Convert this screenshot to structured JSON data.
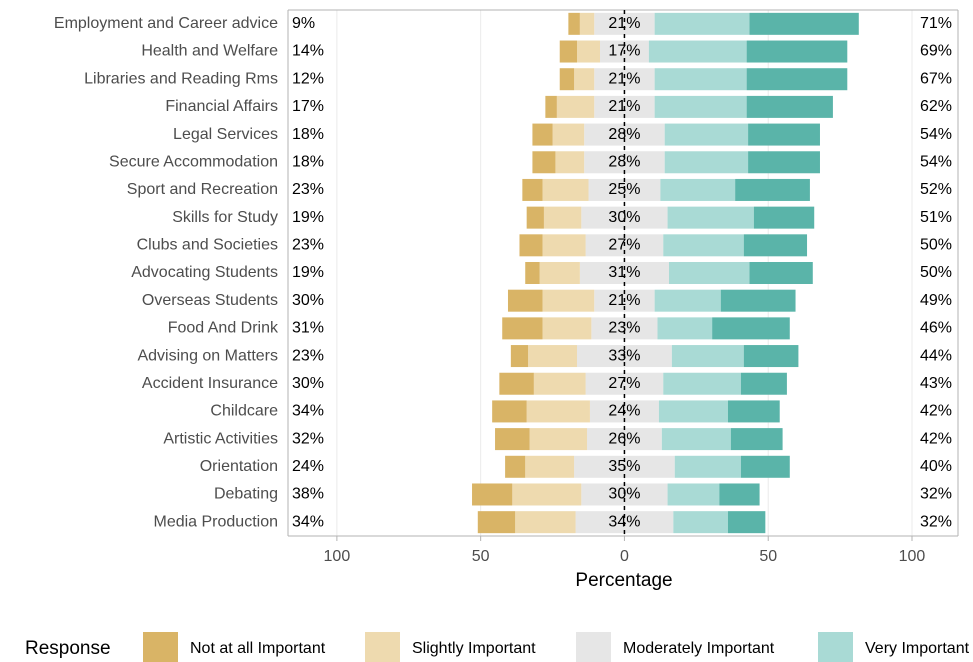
{
  "chart_data": {
    "type": "diverging_bar",
    "xlabel": "Percentage",
    "legend_title": "Response",
    "categories": [
      "Employment and Career advice",
      "Health and Welfare",
      "Libraries and Reading Rms",
      "Financial Affairs",
      "Legal Services",
      "Secure Accommodation",
      "Sport and Recreation",
      "Skills for Study",
      "Clubs and Societies",
      "Advocating Students",
      "Overseas Students",
      "Food And Drink",
      "Advising on Matters",
      "Accident Insurance",
      "Childcare",
      "Artistic Activities",
      "Orientation",
      "Debating",
      "Media Production"
    ],
    "series": [
      {
        "name": "Not at all Important",
        "color": "#d9b466",
        "values": [
          4,
          6,
          5,
          4,
          7,
          8,
          7,
          6,
          8,
          5,
          12,
          14,
          6,
          12,
          12,
          12,
          7,
          14,
          13
        ]
      },
      {
        "name": "Slightly Important",
        "color": "#eedaaf",
        "values": [
          5,
          8,
          7,
          13,
          11,
          10,
          16,
          13,
          15,
          14,
          18,
          17,
          17,
          18,
          22,
          20,
          17,
          24,
          21
        ]
      },
      {
        "name": "Moderately Important",
        "color": "#e6e6e6",
        "values": [
          21,
          17,
          21,
          21,
          28,
          28,
          25,
          30,
          27,
          31,
          21,
          23,
          33,
          27,
          24,
          26,
          35,
          30,
          34
        ]
      },
      {
        "name": "Very Important",
        "color": "#a9dad5",
        "values": [
          33,
          34,
          32,
          32,
          29,
          29,
          26,
          30,
          28,
          28,
          23,
          19,
          25,
          27,
          24,
          24,
          23,
          18,
          19
        ]
      },
      {
        "color": "#5ab4a9",
        "values": [
          38,
          35,
          35,
          30,
          25,
          25,
          26,
          21,
          22,
          22,
          26,
          27,
          19,
          16,
          18,
          18,
          17,
          14,
          13
        ]
      }
    ],
    "left_labels": [
      "9%",
      "14%",
      "12%",
      "17%",
      "18%",
      "18%",
      "23%",
      "19%",
      "23%",
      "19%",
      "30%",
      "31%",
      "23%",
      "30%",
      "34%",
      "32%",
      "24%",
      "38%",
      "34%"
    ],
    "center_labels": [
      "21%",
      "17%",
      "21%",
      "21%",
      "28%",
      "28%",
      "25%",
      "30%",
      "27%",
      "31%",
      "21%",
      "23%",
      "33%",
      "27%",
      "24%",
      "26%",
      "35%",
      "30%",
      "34%"
    ],
    "right_labels": [
      "71%",
      "69%",
      "67%",
      "62%",
      "54%",
      "54%",
      "52%",
      "51%",
      "50%",
      "50%",
      "49%",
      "46%",
      "44%",
      "43%",
      "42%",
      "42%",
      "40%",
      "32%",
      "32%"
    ],
    "xlim": [
      -117,
      116
    ],
    "xticks": [
      {
        "value": -100,
        "label": "100"
      },
      {
        "value": -50,
        "label": "50"
      },
      0,
      50,
      100
    ],
    "grid": true
  }
}
